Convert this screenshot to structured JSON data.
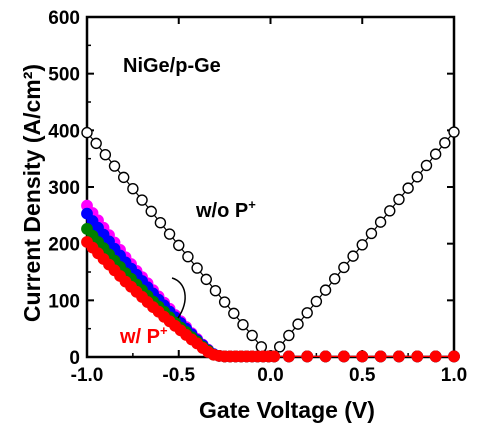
{
  "chart_data": {
    "type": "scatter",
    "title": "",
    "xlabel": "Gate Voltage (V)",
    "ylabel": "Current Density (A/cm²)",
    "xlim": [
      -1.0,
      1.0
    ],
    "ylim": [
      0,
      600
    ],
    "xticks": [
      "-1.0",
      "-0.5",
      "0.0",
      "0.5",
      "1.0"
    ],
    "yticks": [
      "0",
      "100",
      "200",
      "300",
      "400",
      "500",
      "600"
    ],
    "grid": false,
    "annotations": {
      "sample": "NiGe/p-Ge",
      "without_p_base": "w/o P",
      "with_p_base": "w/ P",
      "superscript": "+"
    },
    "series": [
      {
        "name": "w/o P+",
        "color": "#000000",
        "fill": "none",
        "x": [
          -1.0,
          -0.95,
          -0.9,
          -0.85,
          -0.8,
          -0.75,
          -0.7,
          -0.65,
          -0.6,
          -0.55,
          -0.5,
          -0.45,
          -0.4,
          -0.35,
          -0.3,
          -0.25,
          -0.2,
          -0.15,
          -0.1,
          -0.05,
          0.0,
          0.05,
          0.1,
          0.15,
          0.2,
          0.25,
          0.3,
          0.35,
          0.4,
          0.45,
          0.5,
          0.55,
          0.6,
          0.65,
          0.7,
          0.75,
          0.8,
          0.85,
          0.9,
          0.95,
          1.0
        ],
        "y": [
          396,
          377,
          357,
          337,
          317,
          297,
          277,
          257,
          237,
          217,
          197,
          177,
          157,
          137,
          117,
          97,
          77,
          57,
          38,
          18,
          2,
          18,
          38,
          58,
          78,
          98,
          118,
          138,
          158,
          178,
          198,
          218,
          238,
          258,
          278,
          298,
          318,
          338,
          358,
          378,
          397
        ]
      },
      {
        "name": "",
        "color": "#ff00ff",
        "x": [
          -1.0,
          -0.97,
          -0.94,
          -0.91,
          -0.88,
          -0.85,
          -0.82,
          -0.79,
          -0.76,
          -0.73,
          -0.7,
          -0.67,
          -0.64,
          -0.61,
          -0.58,
          -0.55,
          -0.52,
          -0.49,
          -0.46,
          -0.43,
          -0.4,
          -0.37,
          -0.34,
          -0.31,
          -0.28,
          -0.25,
          -0.22,
          -0.19,
          -0.16,
          -0.13,
          -0.1,
          -0.07,
          -0.04,
          -0.01,
          0.02,
          0.1,
          0.2,
          0.3,
          0.4,
          0.5,
          0.6,
          0.7,
          0.8,
          0.9,
          1.0
        ],
        "y": [
          267,
          254,
          241,
          228,
          215,
          202,
          189,
          176,
          164,
          152,
          141,
          130,
          118,
          107,
          96,
          85,
          74,
          63,
          53,
          42,
          32,
          22,
          13,
          5,
          2,
          1,
          1,
          1,
          1,
          1,
          1,
          1,
          1,
          1,
          1,
          1,
          1,
          1,
          1,
          1,
          1,
          1,
          1,
          1,
          1
        ]
      },
      {
        "name": "",
        "color": "#0000ff",
        "x": [
          -1.0,
          -0.97,
          -0.94,
          -0.91,
          -0.88,
          -0.85,
          -0.82,
          -0.79,
          -0.76,
          -0.73,
          -0.7,
          -0.67,
          -0.64,
          -0.61,
          -0.58,
          -0.55,
          -0.52,
          -0.49,
          -0.46,
          -0.43,
          -0.4,
          -0.37,
          -0.34,
          -0.31,
          -0.28,
          -0.25,
          -0.22,
          -0.19,
          -0.16,
          -0.13,
          -0.1,
          -0.07,
          -0.04,
          -0.01,
          0.02,
          0.1,
          0.2,
          0.3,
          0.4,
          0.5,
          0.6,
          0.7,
          0.8,
          0.9,
          1.0
        ],
        "y": [
          253,
          240,
          228,
          216,
          204,
          191,
          179,
          167,
          156,
          145,
          134,
          123,
          112,
          101,
          91,
          80,
          70,
          60,
          50,
          40,
          30,
          21,
          12,
          5,
          2,
          1,
          1,
          1,
          1,
          1,
          1,
          1,
          1,
          1,
          1,
          1,
          1,
          1,
          1,
          1,
          1,
          1,
          1,
          1,
          1
        ]
      },
      {
        "name": "",
        "color": "#008000",
        "x": [
          -1.0,
          -0.97,
          -0.94,
          -0.91,
          -0.88,
          -0.85,
          -0.82,
          -0.79,
          -0.76,
          -0.73,
          -0.7,
          -0.67,
          -0.64,
          -0.61,
          -0.58,
          -0.55,
          -0.52,
          -0.49,
          -0.46,
          -0.43,
          -0.4,
          -0.37,
          -0.34,
          -0.31,
          -0.28,
          -0.25,
          -0.22,
          -0.19,
          -0.16,
          -0.13,
          -0.1,
          -0.07,
          -0.04,
          -0.01,
          0.02,
          0.1,
          0.2,
          0.3,
          0.4,
          0.5,
          0.6,
          0.7,
          0.8,
          0.9,
          1.0
        ],
        "y": [
          226,
          214,
          203,
          192,
          181,
          170,
          159,
          148,
          138,
          128,
          118,
          108,
          98,
          89,
          80,
          70,
          61,
          52,
          44,
          35,
          27,
          18,
          11,
          4,
          2,
          1,
          1,
          1,
          1,
          1,
          1,
          1,
          1,
          1,
          1,
          1,
          1,
          1,
          1,
          1,
          1,
          1,
          1,
          1,
          1
        ]
      },
      {
        "name": "w/ P+",
        "color": "#ff0000",
        "x": [
          -1.0,
          -0.97,
          -0.94,
          -0.91,
          -0.88,
          -0.85,
          -0.82,
          -0.79,
          -0.76,
          -0.73,
          -0.7,
          -0.67,
          -0.64,
          -0.61,
          -0.58,
          -0.55,
          -0.52,
          -0.49,
          -0.46,
          -0.43,
          -0.4,
          -0.37,
          -0.34,
          -0.31,
          -0.28,
          -0.25,
          -0.22,
          -0.19,
          -0.16,
          -0.13,
          -0.1,
          -0.07,
          -0.04,
          -0.01,
          0.02,
          0.1,
          0.2,
          0.3,
          0.4,
          0.5,
          0.6,
          0.7,
          0.8,
          0.9,
          1.0
        ],
        "y": [
          203,
          193,
          183,
          173,
          163,
          153,
          143,
          133,
          124,
          115,
          106,
          97,
          88,
          80,
          71,
          63,
          55,
          47,
          39,
          31,
          24,
          16,
          9,
          4,
          2,
          1,
          1,
          1,
          1,
          1,
          1,
          1,
          1,
          1,
          1,
          1,
          1,
          1,
          1,
          1,
          1,
          1,
          1,
          1,
          1
        ]
      }
    ]
  }
}
